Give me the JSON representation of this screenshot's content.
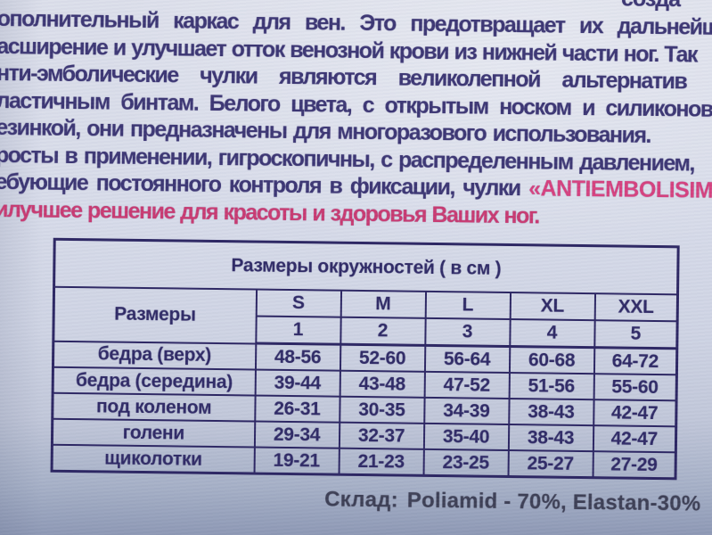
{
  "document": {
    "top_fragment": "созда",
    "lines": [
      "ополнительный каркас для вен. Это предотвращает их дальнейш",
      "асширение и улучшает отток венозной крови из нижней части ног. Так",
      "нти-эмболические чулки являются великолепной альтернатив",
      "ластичным бинтам. Белого цвета, с открытым носком и силиконов",
      "езинкой, они предназначены для многоразового использования.",
      "росты в применении, гигроскопичны, с распределенным давлением,"
    ],
    "line7_prefix": "ебующие постоянного контроля в фиксации, чулки ",
    "brand_name": "«ANTIEMBOLISIMO",
    "line8": "илучшее решение для красоты и здоровья Ваших ног.",
    "text_color": "#3c3674",
    "accent_pink": "#c93a72"
  },
  "size_table": {
    "title": "Размеры окружностей ( в см )",
    "corner_label": "Размеры",
    "size_letters": [
      "S",
      "M",
      "L",
      "XL",
      "XXL"
    ],
    "size_numbers": [
      "1",
      "2",
      "3",
      "4",
      "5"
    ],
    "rows": [
      {
        "label": "бедра (верх)",
        "values": [
          "48-56",
          "52-60",
          "56-64",
          "60-68",
          "64-72"
        ]
      },
      {
        "label": "бедра (середина)",
        "values": [
          "39-44",
          "43-48",
          "47-52",
          "51-56",
          "55-60"
        ]
      },
      {
        "label": "под коленом",
        "values": [
          "26-31",
          "30-35",
          "34-39",
          "38-43",
          "42-47"
        ]
      },
      {
        "label": "голени",
        "values": [
          "29-34",
          "32-37",
          "35-40",
          "38-43",
          "42-47"
        ]
      },
      {
        "label": "щиколотки",
        "values": [
          "19-21",
          "21-23",
          "23-25",
          "25-27",
          "27-29"
        ]
      }
    ],
    "border_color": "#2c2663"
  },
  "footer": {
    "label": "Склад:",
    "value": "Poliamid - 70%, Elastan-30%"
  }
}
